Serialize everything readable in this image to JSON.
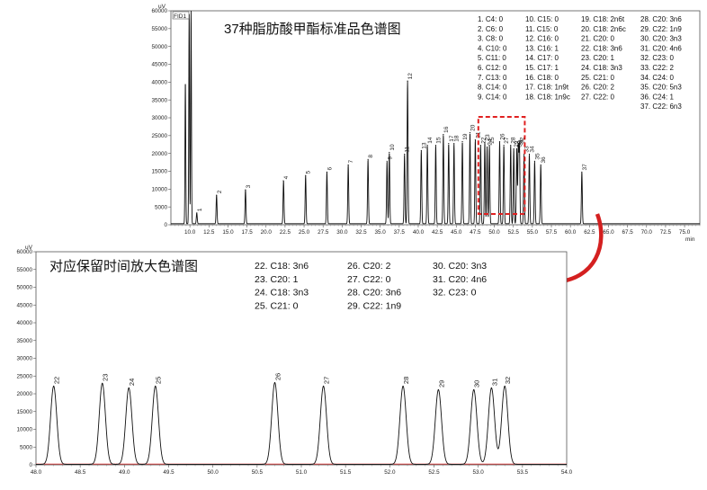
{
  "chart_data": [
    {
      "type": "line",
      "title": "37种脂肪酸甲酯标准品色谱图",
      "detector": "FID1",
      "ylabel": "uV",
      "xlabel": "min",
      "xlim": [
        7.5,
        77
      ],
      "ylim": [
        0,
        60000
      ],
      "xticks": [
        "10.0",
        "12.5",
        "15.0",
        "17.5",
        "20.0",
        "22.5",
        "25.0",
        "27.5",
        "30.0",
        "32.5",
        "35.0",
        "37.5",
        "40.0",
        "42.5",
        "45.0",
        "47.5",
        "50.0",
        "52.5",
        "55.0",
        "57.5",
        "60.0",
        "62.5",
        "65.0",
        "67.5",
        "70.0",
        "72.5",
        "75.0"
      ],
      "yticks": [
        "0",
        "5000",
        "10000",
        "15000",
        "20000",
        "25000",
        "30000",
        "35000",
        "40000",
        "45000",
        "50000",
        "55000",
        "60000"
      ],
      "solvent_peaks": [
        {
          "rt": 9.4,
          "h": 40000
        },
        {
          "rt": 9.9,
          "h": 60000
        },
        {
          "rt": 10.15,
          "h": 60000
        }
      ],
      "peaks": [
        {
          "label": "1",
          "rt": 10.9,
          "h": 3000
        },
        {
          "label": "2",
          "rt": 13.5,
          "h": 8000
        },
        {
          "label": "3",
          "rt": 17.3,
          "h": 9500
        },
        {
          "label": "4",
          "rt": 22.3,
          "h": 12000
        },
        {
          "label": "5",
          "rt": 25.2,
          "h": 13500
        },
        {
          "label": "6",
          "rt": 28.0,
          "h": 14500
        },
        {
          "label": "7",
          "rt": 30.8,
          "h": 16500
        },
        {
          "label": "8",
          "rt": 33.4,
          "h": 18000
        },
        {
          "label": "9",
          "rt": 35.9,
          "h": 17500
        },
        {
          "label": "10",
          "rt": 36.2,
          "h": 20000
        },
        {
          "label": "11",
          "rt": 38.2,
          "h": 19500
        },
        {
          "label": "12",
          "rt": 38.6,
          "h": 40000
        },
        {
          "label": "13",
          "rt": 40.4,
          "h": 20500
        },
        {
          "label": "14",
          "rt": 41.2,
          "h": 22000
        },
        {
          "label": "15",
          "rt": 42.3,
          "h": 22000
        },
        {
          "label": "16",
          "rt": 43.3,
          "h": 25000
        },
        {
          "label": "17",
          "rt": 44.0,
          "h": 22500
        },
        {
          "label": "18",
          "rt": 44.7,
          "h": 22500
        },
        {
          "label": "19",
          "rt": 45.8,
          "h": 23000
        },
        {
          "label": "20",
          "rt": 46.8,
          "h": 25500
        },
        {
          "label": "21",
          "rt": 47.5,
          "h": 23500
        },
        {
          "label": "22",
          "rt": 48.2,
          "h": 22000
        },
        {
          "label": "23",
          "rt": 48.75,
          "h": 22800
        },
        {
          "label": "24",
          "rt": 49.05,
          "h": 21500
        },
        {
          "label": "25",
          "rt": 49.35,
          "h": 22000
        },
        {
          "label": "26",
          "rt": 50.7,
          "h": 23000
        },
        {
          "label": "27",
          "rt": 51.25,
          "h": 22000
        },
        {
          "label": "28",
          "rt": 52.15,
          "h": 22000
        },
        {
          "label": "29",
          "rt": 52.55,
          "h": 21000
        },
        {
          "label": "30",
          "rt": 52.95,
          "h": 21000
        },
        {
          "label": "31",
          "rt": 53.15,
          "h": 21500
        },
        {
          "label": "32",
          "rt": 53.3,
          "h": 22000
        },
        {
          "label": "33",
          "rt": 53.9,
          "h": 19500
        },
        {
          "label": "34",
          "rt": 54.6,
          "h": 19500
        },
        {
          "label": "35",
          "rt": 55.3,
          "h": 17500
        },
        {
          "label": "36",
          "rt": 56.1,
          "h": 16500
        },
        {
          "label": "37",
          "rt": 61.5,
          "h": 14500
        }
      ],
      "zoom_region": {
        "x": [
          47.9,
          54.0
        ],
        "color": "#e02020"
      }
    },
    {
      "type": "line",
      "title": "对应保留时间放大色谱图",
      "ylabel": "uV",
      "xlabel": "",
      "xlim": [
        48.0,
        54.0
      ],
      "ylim": [
        0,
        60000
      ],
      "xticks": [
        "48.0",
        "48.5",
        "49.0",
        "49.5",
        "50.0",
        "50.5",
        "51.0",
        "51.5",
        "52.0",
        "52.5",
        "53.0",
        "53.5",
        "54.0"
      ],
      "yticks": [
        "0",
        "5000",
        "10000",
        "15000",
        "20000",
        "25000",
        "30000",
        "35000",
        "40000",
        "45000",
        "50000",
        "55000",
        "60000"
      ],
      "peaks": [
        {
          "label": "22",
          "rt": 48.2,
          "h": 22000
        },
        {
          "label": "23",
          "rt": 48.75,
          "h": 22800
        },
        {
          "label": "24",
          "rt": 49.05,
          "h": 21500
        },
        {
          "label": "25",
          "rt": 49.35,
          "h": 22000
        },
        {
          "label": "26",
          "rt": 50.7,
          "h": 23000
        },
        {
          "label": "27",
          "rt": 51.25,
          "h": 22000
        },
        {
          "label": "28",
          "rt": 52.15,
          "h": 22000
        },
        {
          "label": "29",
          "rt": 52.55,
          "h": 21000
        },
        {
          "label": "30",
          "rt": 52.95,
          "h": 21000
        },
        {
          "label": "31",
          "rt": 53.15,
          "h": 21500
        },
        {
          "label": "32",
          "rt": 53.3,
          "h": 22000
        }
      ],
      "baseline_color": "#e02020"
    }
  ],
  "legend_main": [
    [
      "1. C4: 0",
      "2. C6: 0",
      "3. C8: 0",
      "4. C10: 0",
      "5. C11: 0",
      "6. C12: 0",
      "7. C13: 0",
      "8. C14: 0",
      "9. C14: 0"
    ],
    [
      "10. C15: 0",
      "11. C15: 0",
      "12. C16: 0",
      "13. C16: 1",
      "14. C17: 0",
      "15. C17: 1",
      "16. C18: 0",
      "17. C18: 1n9t",
      "18. C18: 1n9c"
    ],
    [
      "19. C18: 2n6t",
      "20. C18: 2n6c",
      "21. C20: 0",
      "22. C18: 3n6",
      "23. C20: 1",
      "24. C18: 3n3",
      "25. C21: 0",
      "26. C20: 2",
      "27. C22: 0"
    ],
    [
      "28. C20: 3n6",
      "29. C22: 1n9",
      "30. C20: 3n3",
      "31. C20: 4n6",
      "32. C23: 0",
      "33. C22: 2",
      "34. C24: 0",
      "35. C20: 5n3",
      "36. C24: 1",
      "37. C22: 6n3"
    ]
  ],
  "legend_zoom": [
    [
      "22. C18: 3n6",
      "23. C20: 1",
      "24. C18: 3n3",
      "25. C21: 0"
    ],
    [
      "26. C20: 2",
      "27. C22: 0",
      "28. C20: 3n6",
      "29. C22: 1n9"
    ],
    [
      "30. C20: 3n3",
      "31. C20: 4n6",
      "32. C23: 0"
    ]
  ]
}
